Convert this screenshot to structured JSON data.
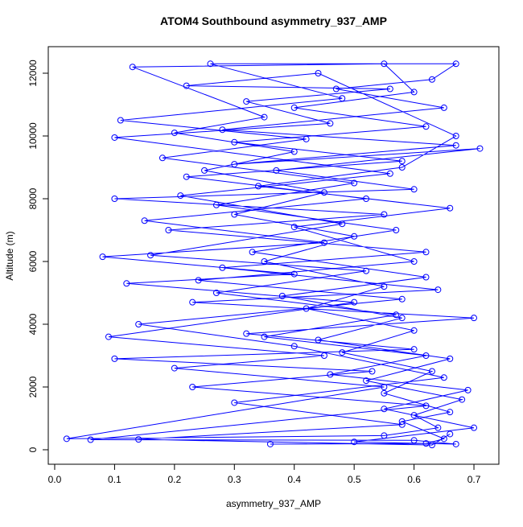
{
  "chart_data": {
    "type": "line",
    "title": "ATOM4 Southbound asymmetry_937_AMP",
    "x_label": "asymmetry_937_AMP",
    "y_label": "Altitude (m)",
    "color": "#0000ff",
    "markers": true,
    "xlim": [
      -0.0107,
      0.7416
    ],
    "ylim": [
      -462,
      12846
    ],
    "xticks": [
      {
        "value": 0,
        "label": "0.0"
      },
      0.1,
      0.2,
      0.3,
      0.4,
      0.5,
      0.6,
      0.7
    ],
    "yticks": [
      0,
      2000,
      4000,
      6000,
      8000,
      10000,
      12000
    ],
    "x": [
      0.36,
      0.62,
      0.65,
      0.58,
      0.66,
      0.55,
      0.63,
      0.48,
      0.6,
      0.42,
      0.55,
      0.35,
      0.5,
      0.3,
      0.45,
      0.25,
      0.4,
      0.2,
      0.35,
      0.13,
      0.55,
      0.6,
      0.4,
      0.62,
      0.3,
      0.58,
      0.22,
      0.52,
      0.15,
      0.45,
      0.08,
      0.4,
      0.12,
      0.5,
      0.09,
      0.45,
      0.2,
      0.55,
      0.02,
      0.55,
      0.64,
      0.6,
      0.68,
      0.52,
      0.66,
      0.44,
      0.58,
      0.38,
      0.62,
      0.33,
      0.57,
      0.27,
      0.5,
      0.18,
      0.42,
      0.11,
      0.48,
      0.26,
      0.67,
      0.63,
      0.47,
      0.65,
      0.28,
      0.67,
      0.3,
      0.71,
      0.37,
      0.6,
      0.1,
      0.55,
      0.19,
      0.62,
      0.28,
      0.64,
      0.23,
      0.7,
      0.32,
      0.6,
      0.1,
      0.53,
      0.23,
      0.62,
      0.06,
      0.6,
      0.67,
      0.5,
      0.7,
      0.55,
      0.69,
      0.46,
      0.62,
      0.35,
      0.57,
      0.27,
      0.52,
      0.16,
      0.48,
      0.21,
      0.56,
      0.1,
      0.46,
      0.32,
      0.56,
      0.22,
      0.44,
      0.67,
      0.58,
      0.34,
      0.66,
      0.4,
      0.6,
      0.24,
      0.58,
      0.14,
      0.4,
      0.65,
      0.3,
      0.58,
      0.14,
      0.63,
      0.66
    ],
    "values": [
      180,
      200,
      350,
      900,
      1200,
      1800,
      2500,
      3100,
      3800,
      4500,
      5200,
      6000,
      6800,
      7500,
      8200,
      8900,
      9500,
      10100,
      10600,
      12200,
      12300,
      11400,
      10900,
      10300,
      9800,
      9200,
      8700,
      8000,
      7300,
      6600,
      6150,
      5600,
      5300,
      4700,
      3600,
      3000,
      2600,
      2000,
      350,
      450,
      700,
      1100,
      1600,
      2200,
      2900,
      3500,
      4200,
      4900,
      5500,
      6300,
      7000,
      7800,
      8500,
      9300,
      9900,
      10500,
      11200,
      12300,
      12300,
      11800,
      11500,
      10900,
      10200,
      9700,
      9100,
      9600,
      8900,
      8300,
      8000,
      7500,
      7000,
      6300,
      5800,
      5100,
      4700,
      4200,
      3700,
      3200,
      2900,
      2500,
      2000,
      1400,
      320,
      300,
      180,
      250,
      700,
      1300,
      1900,
      2400,
      3000,
      3600,
      4300,
      5000,
      5700,
      6200,
      7200,
      8100,
      8800,
      9950,
      10400,
      11100,
      11500,
      11600,
      12000,
      10000,
      9000,
      8400,
      7700,
      7100,
      6000,
      5400,
      4800,
      4000,
      3300,
      2300,
      1500,
      800,
      330,
      150,
      500
    ]
  }
}
